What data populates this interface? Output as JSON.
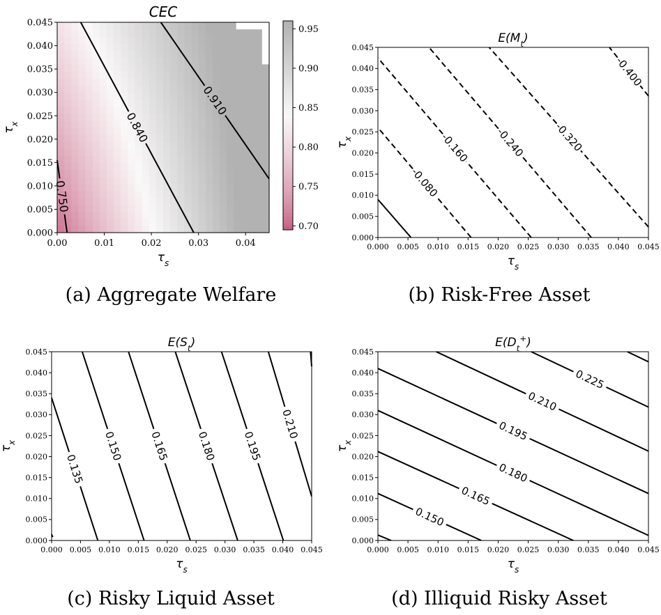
{
  "captions": {
    "a": "(a) Aggregate Welfare",
    "b": "(b) Risk-Free Asset",
    "c": "(c) Risky Liquid Asset",
    "d": "(d) Illiquid Risky Asset"
  },
  "chart_data": [
    {
      "type": "heatmap",
      "title": "CEC",
      "xlabel": "τ_s",
      "ylabel": "τ_x",
      "xlim": [
        0,
        0.045
      ],
      "ylim": [
        0,
        0.045
      ],
      "x_ticks": [
        "0.00",
        "0.01",
        "0.02",
        "0.03",
        "0.04"
      ],
      "y_ticks": [
        "0.000",
        "0.005",
        "0.010",
        "0.015",
        "0.020",
        "0.025",
        "0.030",
        "0.035",
        "0.040",
        "0.045"
      ],
      "colorbar": {
        "range": [
          0.695,
          0.96
        ],
        "ticks": [
          "0.70",
          "0.75",
          "0.80",
          "0.85",
          "0.90",
          "0.95"
        ],
        "colormap": "pink-white-gray"
      },
      "contour_levels": [
        {
          "label": "0.750",
          "points": [
            [
              0.0021,
              0
            ],
            [
              0,
              0.0155
            ]
          ]
        },
        {
          "label": "0.840",
          "points": [
            [
              0.029,
              0
            ],
            [
              0.02,
              0.02
            ],
            [
              0.005,
              0.045
            ]
          ]
        },
        {
          "label": "0.910",
          "points": [
            [
              0.045,
              0.0115
            ],
            [
              0.034,
              0.029
            ],
            [
              0.022,
              0.045
            ]
          ]
        }
      ],
      "masked_region": "top-right corner (no data)"
    },
    {
      "type": "line",
      "title": "E(M_t)",
      "xlabel": "τ_s",
      "ylabel": "τ_x",
      "xlim": [
        0,
        0.045
      ],
      "ylim": [
        0,
        0.045
      ],
      "ticks": [
        "0.000",
        "0.005",
        "0.010",
        "0.015",
        "0.020",
        "0.025",
        "0.030",
        "0.035",
        "0.040",
        "0.045"
      ],
      "contour_levels": [
        {
          "label": "",
          "style": "solid",
          "points": [
            [
              0.0055,
              0
            ],
            [
              0,
              0.009
            ]
          ]
        },
        {
          "label": "-0.080",
          "style": "dashed",
          "points": [
            [
              0.0155,
              0
            ],
            [
              0,
              0.026
            ]
          ]
        },
        {
          "label": "-0.160",
          "style": "dashed",
          "points": [
            [
              0.0255,
              0
            ],
            [
              0,
              0.0425
            ]
          ]
        },
        {
          "label": "-0.240",
          "style": "dashed",
          "points": [
            [
              0.0355,
              0
            ],
            [
              0.0085,
              0.045
            ]
          ]
        },
        {
          "label": "-0.320",
          "style": "dashed",
          "points": [
            [
              0.045,
              0.0025
            ],
            [
              0.0185,
              0.045
            ]
          ]
        },
        {
          "label": "-0.400",
          "style": "dashed",
          "points": [
            [
              0.045,
              0.0335
            ],
            [
              0.0385,
              0.045
            ]
          ]
        }
      ]
    },
    {
      "type": "line",
      "title": "E(S_t)",
      "xlabel": "τ_s",
      "ylabel": "τ_x",
      "xlim": [
        0,
        0.045
      ],
      "ylim": [
        0,
        0.045
      ],
      "ticks": [
        "0.000",
        "0.005",
        "0.010",
        "0.015",
        "0.020",
        "0.025",
        "0.030",
        "0.035",
        "0.040",
        "0.045"
      ],
      "contour_levels": [
        {
          "label": "0.135",
          "points": [
            [
              0.008,
              0
            ],
            [
              0,
              0.034
            ]
          ]
        },
        {
          "label": "0.150",
          "points": [
            [
              0.016,
              0
            ],
            [
              0.0053,
              0.045
            ]
          ]
        },
        {
          "label": "0.165",
          "points": [
            [
              0.024,
              0
            ],
            [
              0.0133,
              0.045
            ]
          ]
        },
        {
          "label": "0.180",
          "points": [
            [
              0.0322,
              0
            ],
            [
              0.0214,
              0.045
            ]
          ]
        },
        {
          "label": "0.195",
          "points": [
            [
              0.0401,
              0
            ],
            [
              0.0294,
              0.045
            ]
          ]
        },
        {
          "label": "0.210",
          "points": [
            [
              0.045,
              0.0105
            ],
            [
              0.0375,
              0.045
            ]
          ]
        },
        {
          "label": "",
          "points": [
            [
              0.045,
              0.0415
            ],
            [
              0.0448,
              0.045
            ]
          ]
        },
        {
          "label": "",
          "points": [
            [
              0.0002,
              0.0008
            ],
            [
              0,
              0.0015
            ]
          ]
        }
      ]
    },
    {
      "type": "line",
      "title": "E(D_t^+)",
      "xlabel": "τ_s",
      "ylabel": "τ_x",
      "xlim": [
        0,
        0.045
      ],
      "ylim": [
        0,
        0.045
      ],
      "ticks": [
        "0.000",
        "0.005",
        "0.010",
        "0.015",
        "0.020",
        "0.025",
        "0.030",
        "0.035",
        "0.040",
        "0.045"
      ],
      "contour_levels": [
        {
          "label": "",
          "points": [
            [
              0,
              0.0013
            ],
            [
              0.0022,
              0
            ]
          ]
        },
        {
          "label": "0.150",
          "points": [
            [
              0,
              0.0112
            ],
            [
              0.0172,
              0
            ]
          ]
        },
        {
          "label": "0.165",
          "points": [
            [
              0,
              0.0212
            ],
            [
              0.0325,
              0
            ]
          ]
        },
        {
          "label": "0.180",
          "points": [
            [
              0,
              0.031
            ],
            [
              0.045,
              0.0012
            ]
          ]
        },
        {
          "label": "0.195",
          "points": [
            [
              0,
              0.041
            ],
            [
              0.045,
              0.0112
            ]
          ]
        },
        {
          "label": "0.210",
          "points": [
            [
              0.0097,
              0.045
            ],
            [
              0.045,
              0.0213
            ]
          ]
        },
        {
          "label": "0.225",
          "points": [
            [
              0.0255,
              0.045
            ],
            [
              0.045,
              0.0318
            ]
          ]
        },
        {
          "label": "",
          "points": [
            [
              0.0415,
              0.045
            ],
            [
              0.045,
              0.0426
            ]
          ]
        }
      ]
    }
  ]
}
